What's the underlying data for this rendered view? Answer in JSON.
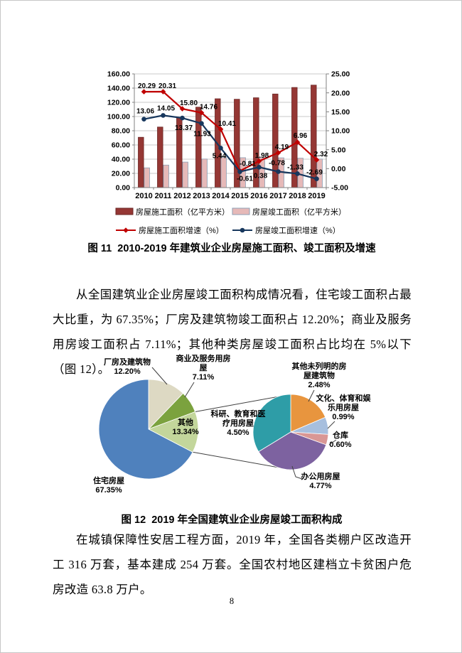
{
  "page_number": "8",
  "figure11_caption": "图 11  2010-2019 年建筑业企业房屋施工面积、竣工面积及增速",
  "figure12_caption": "图 12  2019 年全国建筑业企业房屋竣工面积构成",
  "paragraphs": {
    "p1": "从全国建筑业企业房屋竣工面积构成情况看，住宅竣工面积占最大比重，为 67.35%；厂房及建筑物竣工面积占 12.20%；商业及服务用房竣工面积占 7.11%；其他种类房屋竣工面积占比均在 5%以下（图 12）。",
    "p2": "在城镇保障性安居工程方面，2019 年，全国各类棚户区改造开工 316 万套，基本建成 254 万套。全国农村地区建档立卡贫困户危房改造 63.8 万户。"
  },
  "chart_data": [
    {
      "type": "bar",
      "subtype": "combo-bar-line",
      "categories": [
        "2010",
        "2011",
        "2012",
        "2013",
        "2014",
        "2015",
        "2016",
        "2017",
        "2018",
        "2019"
      ],
      "series": [
        {
          "name": "房屋施工面积（亿平方米）",
          "kind": "bar",
          "axis": "left",
          "color": "#953734",
          "border": "#6B2726",
          "values": [
            70.8,
            85.2,
            98.6,
            113.2,
            125.0,
            124.3,
            126.4,
            131.7,
            140.9,
            144.2
          ]
        },
        {
          "name": "房屋竣工面积（亿平方米）",
          "kind": "bar",
          "axis": "left",
          "color": "#E6B9B8",
          "border": "#8DA0B6",
          "values": [
            27.8,
            31.7,
            35.9,
            40.2,
            42.4,
            42.1,
            42.2,
            41.9,
            41.4,
            40.2
          ]
        },
        {
          "name": "房屋施工面积增速（%）",
          "kind": "line",
          "axis": "right",
          "color": "#C00000",
          "marker": "diamond",
          "values": [
            20.29,
            20.31,
            15.8,
            14.76,
            10.41,
            -0.61,
            1.98,
            4.19,
            6.96,
            2.32
          ]
        },
        {
          "name": "房屋竣工面积增速（%）",
          "kind": "line",
          "axis": "right",
          "color": "#17375D",
          "marker": "circle",
          "values": [
            13.06,
            14.05,
            13.37,
            11.93,
            5.44,
            -0.81,
            0.38,
            -0.78,
            -1.33,
            -2.69
          ]
        }
      ],
      "left_axis": {
        "min": 0,
        "max": 160,
        "step": 20,
        "format": "0.00"
      },
      "right_axis": {
        "min": -5,
        "max": 25,
        "step": 5,
        "format": "0.00"
      },
      "grid": true,
      "legend_position": "bottom",
      "title": ""
    },
    {
      "type": "pie",
      "subtype": "pie-of-pie",
      "title": "2019 年全国建筑业企业房屋竣工面积构成",
      "primary": [
        {
          "label": "厂房及建筑物",
          "percent": 12.2,
          "color": "#DDD9C3"
        },
        {
          "label": "商业及服务用房屋",
          "percent": 7.11,
          "color": "#7BA23E"
        },
        {
          "label": "其他",
          "percent": 13.34,
          "color": "#C3D69B"
        },
        {
          "label": "住宅房屋",
          "percent": 67.35,
          "color": "#4F81BD"
        }
      ],
      "secondary_breakdown_of": "其他",
      "secondary": [
        {
          "label": "其他未列明的房屋建筑物",
          "percent": 2.48,
          "color": "#E8953E"
        },
        {
          "label": "文化、体育和娱乐用房屋",
          "percent": 0.99,
          "color": "#A7BFDE"
        },
        {
          "label": "仓库",
          "percent": 0.6,
          "color": "#D99795"
        },
        {
          "label": "办公用房屋",
          "percent": 4.77,
          "color": "#7D62A0"
        },
        {
          "label": "科研、教育和医疗用房屋",
          "percent": 4.5,
          "color": "#2E9DA7"
        }
      ]
    }
  ]
}
